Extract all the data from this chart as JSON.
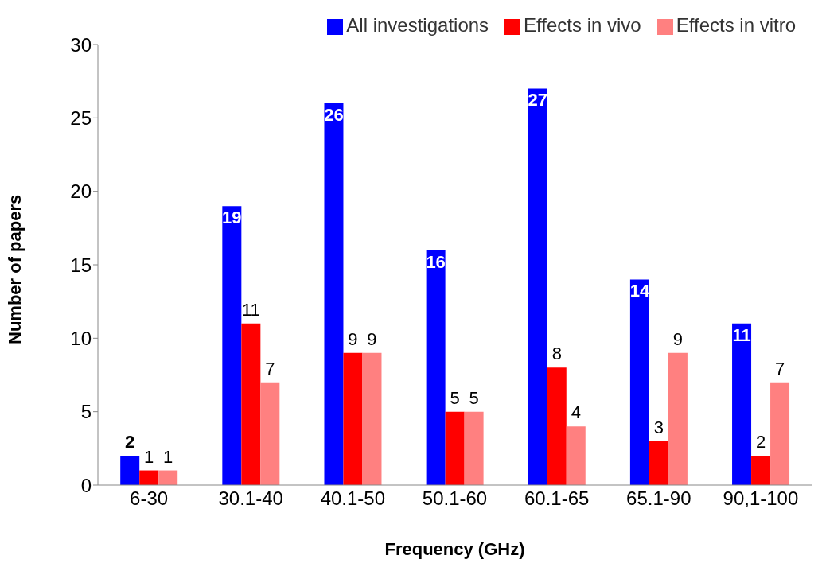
{
  "chart_data": {
    "type": "bar",
    "xlabel": "Frequency (GHz)",
    "ylabel": "Number of papers",
    "categories": [
      "6-30",
      "30.1-40",
      "40.1-50",
      "50.1-60",
      "60.1-65",
      "65.1-90",
      "90,1-100"
    ],
    "series": [
      {
        "name": "All investigations",
        "color": "#0000ff",
        "values": [
          2,
          19,
          26,
          16,
          27,
          14,
          11
        ]
      },
      {
        "name": "Effects in vivo",
        "color": "#ff0000",
        "values": [
          1,
          11,
          9,
          5,
          8,
          3,
          2
        ]
      },
      {
        "name": "Effects in vitro",
        "color": "#ff8080",
        "values": [
          1,
          7,
          9,
          5,
          4,
          9,
          7
        ]
      }
    ],
    "ylim": [
      0,
      30
    ],
    "yticks": [
      0,
      5,
      10,
      15,
      20,
      25,
      30
    ],
    "grid": false,
    "legend": "top right",
    "data_labels": true
  }
}
